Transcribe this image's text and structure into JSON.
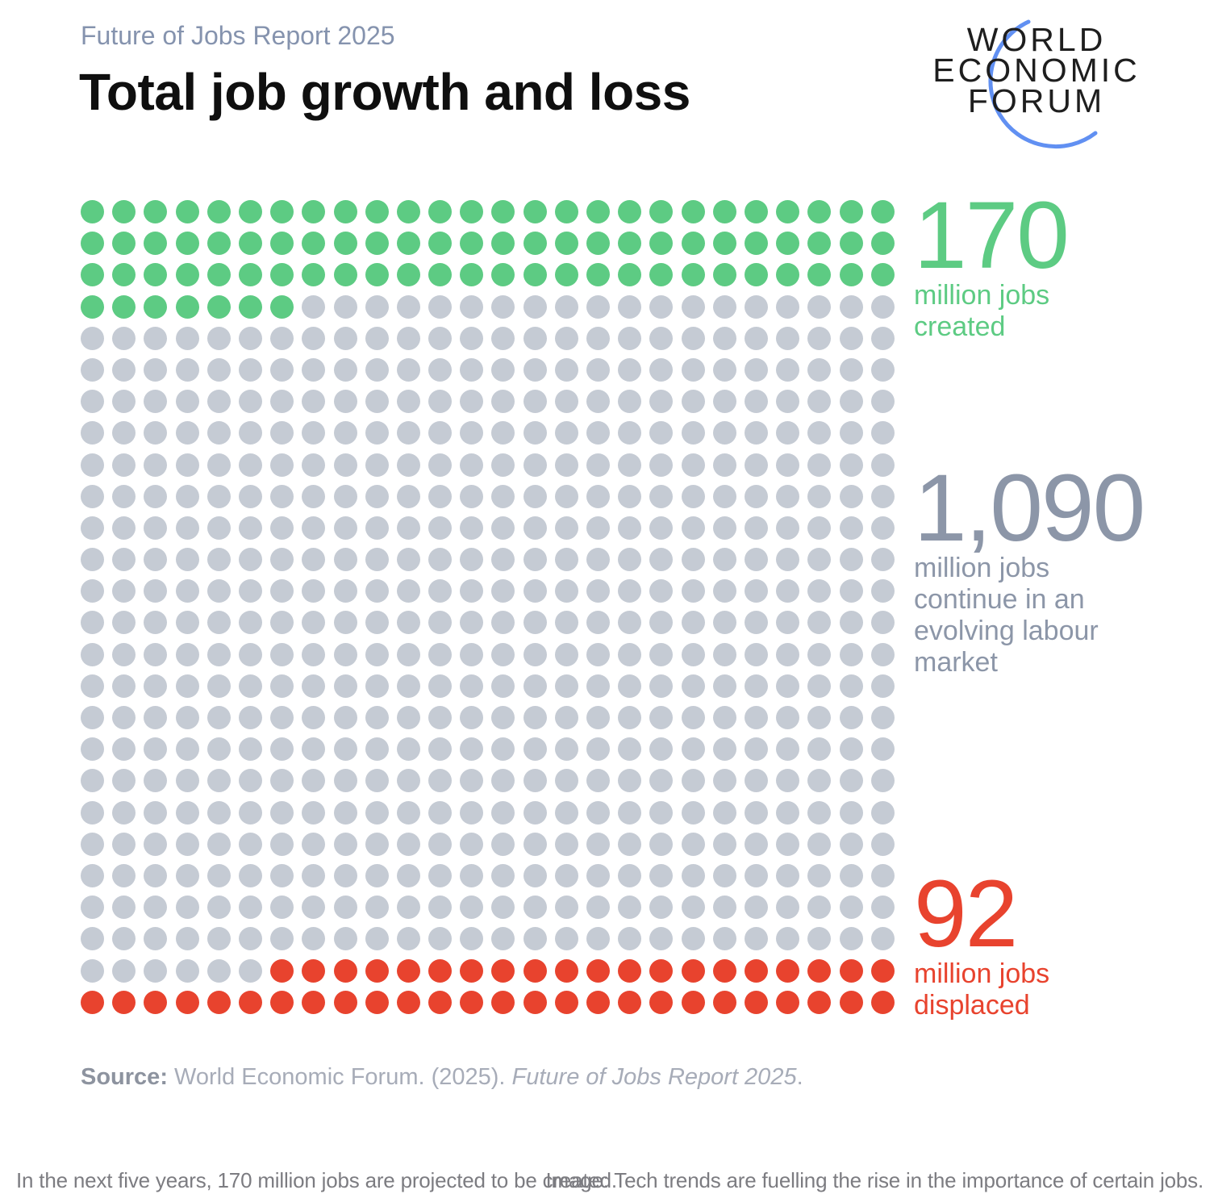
{
  "header": {
    "eyebrow": "Future of Jobs Report 2025",
    "title": "Total job growth and loss"
  },
  "logo": {
    "lines": [
      "WORLD",
      "ECONOMIC",
      "FORUM"
    ],
    "arc_color": "#6190F2",
    "text_color": "#1E1E1E"
  },
  "chart_data": {
    "type": "waffle",
    "title": "Total job growth and loss",
    "grid": {
      "columns": 26,
      "rows": 26,
      "total_dots": 676
    },
    "millions_per_dot": 2,
    "series": [
      {
        "name": "jobs created",
        "value_millions": 170,
        "dots": 85,
        "color": "#5DCB83"
      },
      {
        "name": "jobs continue in an evolving labour market",
        "value_millions": 1090,
        "dots": 545,
        "color": "#C5CBD4"
      },
      {
        "name": "jobs displaced",
        "value_millions": 92,
        "dots": 46,
        "color": "#E8432E"
      }
    ],
    "labels": [
      {
        "value": "170",
        "lines": [
          "million jobs",
          "created"
        ],
        "color": "#5DCB83"
      },
      {
        "value": "1,090",
        "lines": [
          "million jobs",
          "continue in an",
          "evolving labour",
          "market"
        ],
        "color": "#8C96A8"
      },
      {
        "value": "92",
        "lines": [
          "million jobs",
          "displaced"
        ],
        "color": "#E8432E"
      }
    ],
    "legend_position": "right"
  },
  "source": {
    "label": "Source:",
    "text": " World Economic Forum. (2025). ",
    "italic": "Future of Jobs Report 2025",
    "period": "."
  },
  "footer": {
    "left": "In the next five years, 170 million jobs are projected to be created.",
    "right": "Image: Tech trends are fuelling the rise in the importance of certain jobs."
  }
}
